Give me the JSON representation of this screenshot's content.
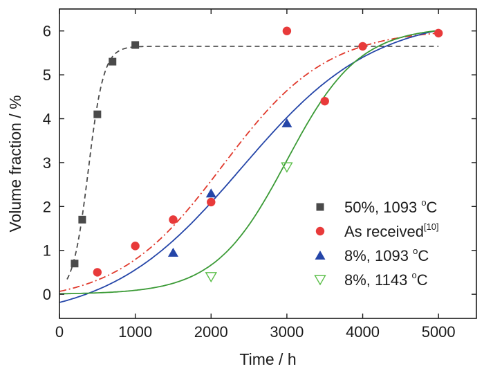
{
  "chart_data": {
    "type": "scatter",
    "xlabel": "Time / h",
    "ylabel": "Volume fraction / %",
    "xlim": [
      0,
      5500
    ],
    "ylim": [
      -0.55,
      6.5
    ],
    "xticks": [
      0,
      1000,
      2000,
      3000,
      4000,
      5000
    ],
    "yticks": [
      0,
      1,
      2,
      3,
      4,
      5,
      6
    ],
    "xtick_labels": [
      "0",
      "1000",
      "2000",
      "3000",
      "4000",
      "5000"
    ],
    "ytick_labels": [
      "0",
      "1",
      "2",
      "3",
      "4",
      "5",
      "6"
    ],
    "grid": false,
    "legend_position": "bottom-right",
    "series": [
      {
        "name": "50%, 1093 °C",
        "label_main": "50%, 1093 ",
        "label_sup": "o",
        "label_tail": "C",
        "marker": "square",
        "color": "#4a4a4a",
        "x": [
          200,
          300,
          500,
          700,
          1000
        ],
        "y": [
          0.7,
          1.7,
          4.1,
          5.3,
          5.68
        ],
        "fit": {
          "style": "dashed",
          "color": "#4a4a4a",
          "model": "sigmoid",
          "ymin": 0.0,
          "ymax": 5.65,
          "x0": 380,
          "k": 0.0098,
          "x_start": 100,
          "x_end": 5000
        }
      },
      {
        "name": "As received[10]",
        "label_main": "As received",
        "label_sup": "[10]",
        "label_tail": "",
        "marker": "circle",
        "color": "#e83a3a",
        "x": [
          500,
          1000,
          1500,
          2000,
          3000,
          3500,
          4000,
          5000
        ],
        "y": [
          0.5,
          1.1,
          1.7,
          2.1,
          6.0,
          4.4,
          5.65,
          5.95
        ],
        "fit": {
          "style": "dashdot",
          "color": "#e0392c",
          "model": "sigmoid",
          "ymin": -0.2,
          "ymax": 6.05,
          "x0": 2150,
          "k": 0.00145,
          "x_start": 0,
          "x_end": 5000
        }
      },
      {
        "name": "8%, 1093 °C",
        "label_main": "8%, 1093 ",
        "label_sup": "o",
        "label_tail": "C",
        "marker": "triangle-up",
        "color": "#2445a8",
        "x": [
          1500,
          2000,
          3000
        ],
        "y": [
          0.95,
          2.3,
          3.9
        ],
        "fit": {
          "style": "solid",
          "color": "#2445a8",
          "model": "sigmoid",
          "ymin": -0.6,
          "ymax": 6.35,
          "x0": 2400,
          "k": 0.00115,
          "x_start": 0,
          "x_end": 5000
        }
      },
      {
        "name": "8%, 1143 °C",
        "label_main": "8%, 1143 ",
        "label_sup": "o",
        "label_tail": "C",
        "marker": "triangle-down-open",
        "color": "#5cbf4a",
        "x": [
          2000,
          3000
        ],
        "y": [
          0.4,
          2.9
        ],
        "fit": {
          "style": "solid",
          "color": "#3a9a35",
          "model": "sigmoid",
          "ymin": 0.0,
          "ymax": 6.1,
          "x0": 3000,
          "k": 0.0021,
          "x_start": 0,
          "x_end": 5000
        }
      }
    ]
  }
}
